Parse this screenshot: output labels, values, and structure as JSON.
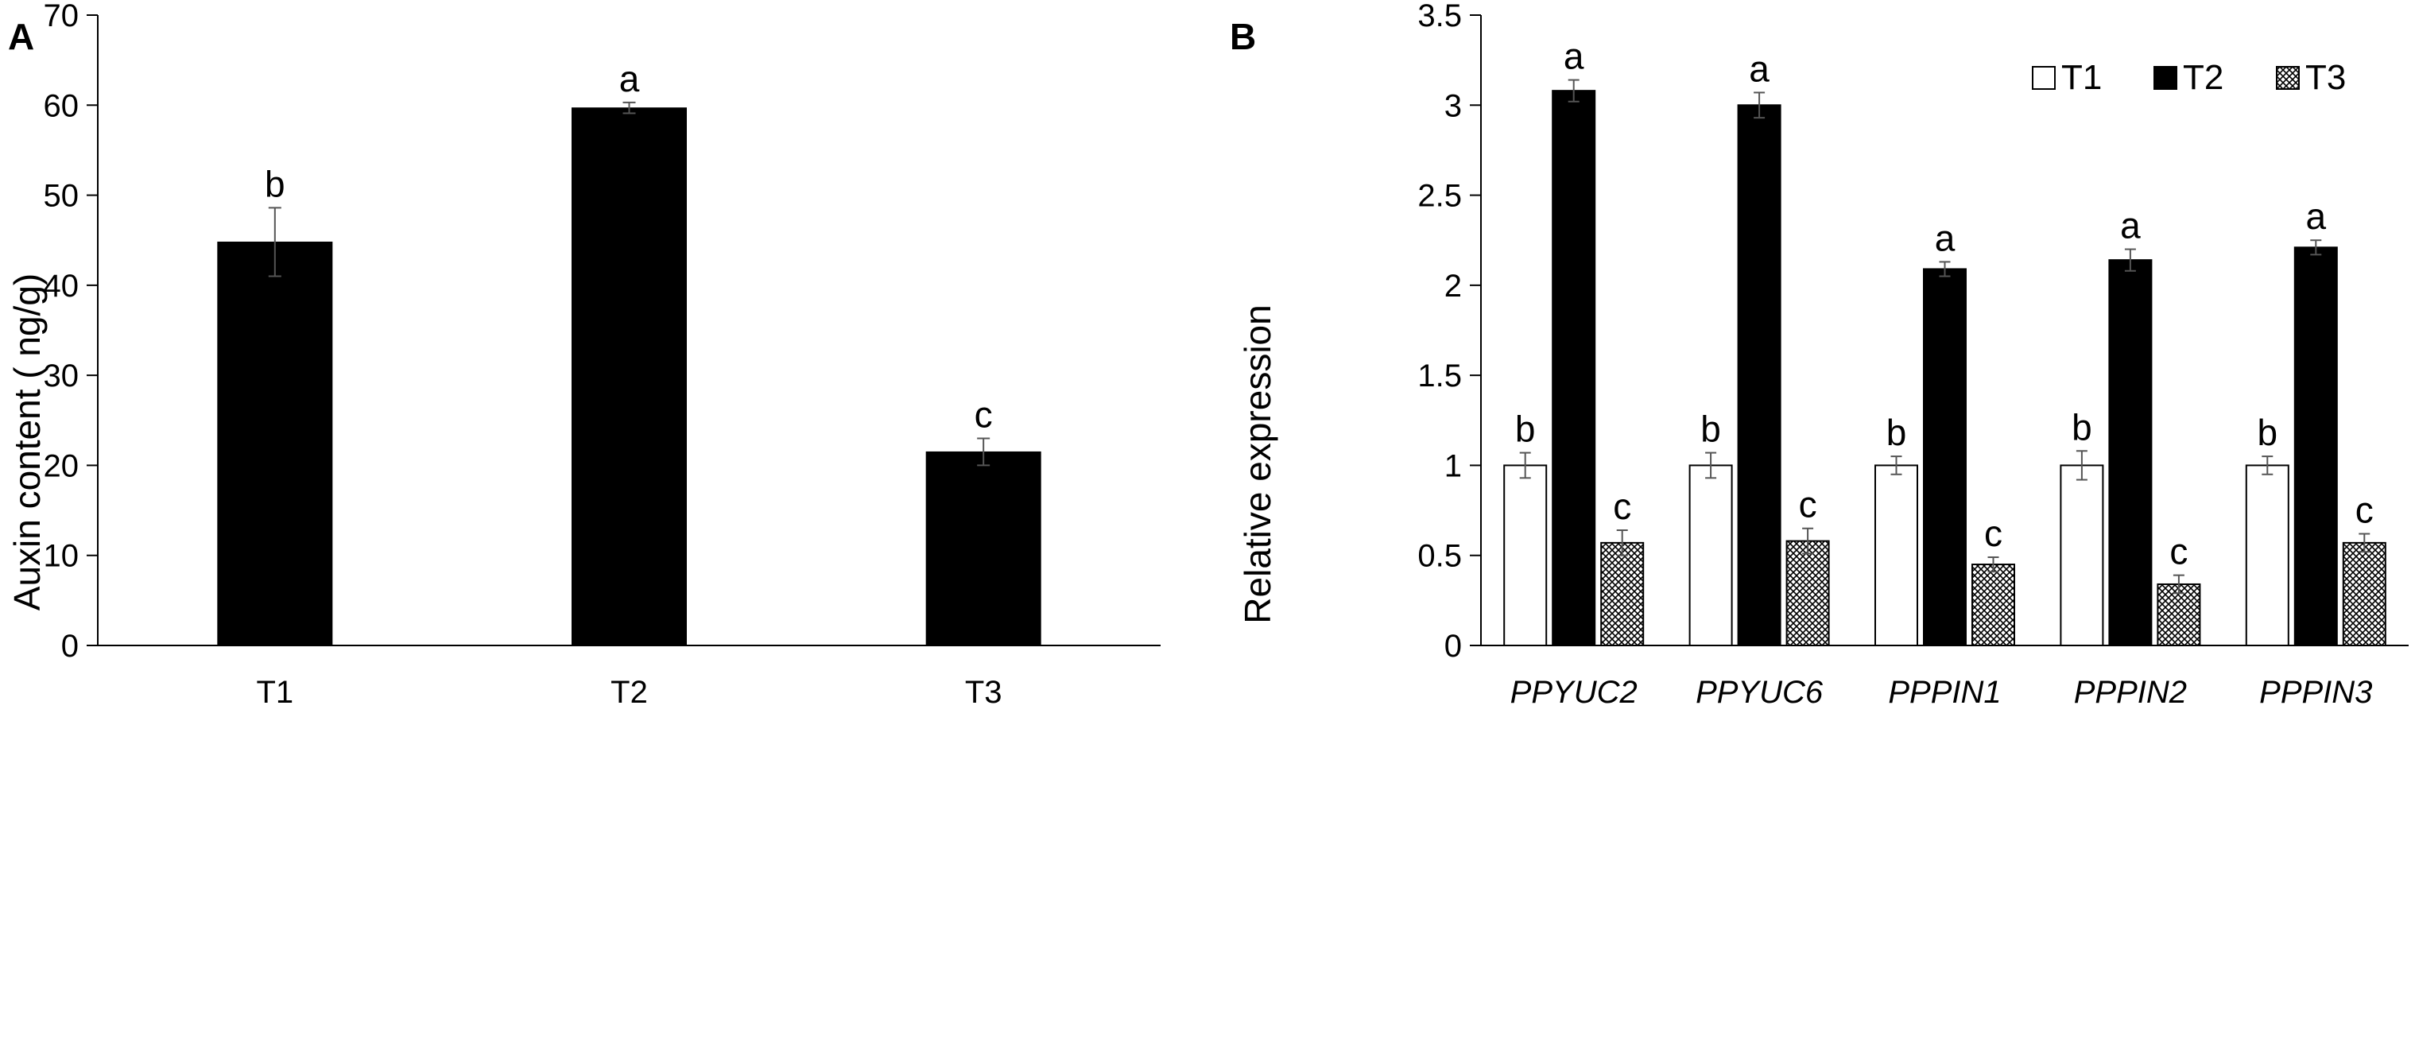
{
  "chart_data": [
    {
      "type": "bar",
      "panel_label": "A",
      "title": "",
      "xlabel": "",
      "ylabel": "Auxin content ( ng/g)",
      "ylim": [
        0,
        70
      ],
      "yticks": [
        "0",
        "10",
        "20",
        "30",
        "40",
        "50",
        "60",
        "70"
      ],
      "categories": [
        "T1",
        "T2",
        "T3"
      ],
      "values": [
        44.8,
        59.7,
        21.5
      ],
      "errors": [
        3.8,
        0.6,
        1.5
      ],
      "significance": [
        "b",
        "a",
        "c"
      ],
      "bar_color": "#000000",
      "grid": false
    },
    {
      "type": "bar",
      "panel_label": "B",
      "title": "",
      "xlabel": "",
      "ylabel": "Relative expression",
      "ylim": [
        0,
        3.5
      ],
      "yticks": [
        "0",
        "0.5",
        "1",
        "1.5",
        "2",
        "2.5",
        "3",
        "3.5"
      ],
      "categories": [
        "PPYUC2",
        "PPYUC6",
        "PPPIN1",
        "PPPIN2",
        "PPPIN3"
      ],
      "legend_position": "top-right",
      "grid": false,
      "series": [
        {
          "name": "T1",
          "fill": "white",
          "values": [
            1.0,
            1.0,
            1.0,
            1.0,
            1.0
          ],
          "errors": [
            0.07,
            0.07,
            0.05,
            0.08,
            0.05
          ],
          "significance": [
            "b",
            "b",
            "b",
            "b",
            "b"
          ]
        },
        {
          "name": "T2",
          "fill": "black",
          "values": [
            3.08,
            3.0,
            2.09,
            2.14,
            2.21
          ],
          "errors": [
            0.06,
            0.07,
            0.04,
            0.06,
            0.04
          ],
          "significance": [
            "a",
            "a",
            "a",
            "a",
            "a"
          ]
        },
        {
          "name": "T3",
          "fill": "crosshatch",
          "values": [
            0.57,
            0.58,
            0.45,
            0.34,
            0.57
          ],
          "errors": [
            0.07,
            0.07,
            0.04,
            0.05,
            0.05
          ],
          "significance": [
            "c",
            "c",
            "c",
            "c",
            "c"
          ]
        }
      ]
    }
  ]
}
